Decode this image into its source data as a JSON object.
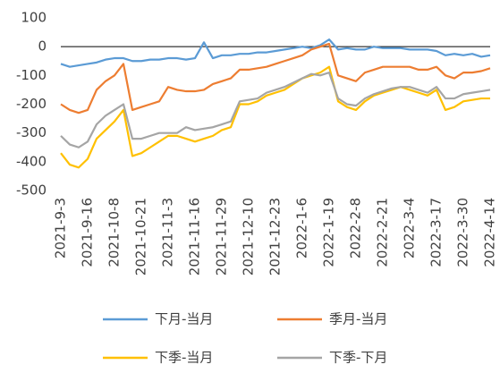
{
  "chart_data": {
    "type": "line",
    "categories": [
      "2021-9-3",
      null,
      null,
      "2021-9-16",
      null,
      null,
      "2021-10-8",
      null,
      null,
      "2021-10-21",
      null,
      null,
      "2021-11-3",
      null,
      null,
      "2021-11-16",
      null,
      null,
      "2021-11-29",
      null,
      null,
      "2021-12-10",
      null,
      null,
      "2021-12-23",
      null,
      null,
      "2022-1-6",
      null,
      null,
      "2022-1-19",
      null,
      null,
      "2022-2-8",
      null,
      null,
      "2022-2-21",
      null,
      null,
      "2022-3-4",
      null,
      null,
      "2022-3-17",
      null,
      null,
      "2022-3-30",
      null,
      null,
      "2022-4-14"
    ],
    "series": [
      {
        "name": "下月-当月",
        "color": "#5b9bd5",
        "values": [
          -60,
          -70,
          -65,
          -60,
          -55,
          -45,
          -40,
          -40,
          -50,
          -50,
          -45,
          -45,
          -40,
          -40,
          -45,
          -40,
          15,
          -40,
          -30,
          -30,
          -25,
          -25,
          -20,
          -20,
          -15,
          -10,
          -5,
          0,
          -5,
          5,
          25,
          -10,
          -5,
          -10,
          -10,
          0,
          -5,
          -5,
          -5,
          -10,
          -10,
          -10,
          -15,
          -30,
          -25,
          -30,
          -25,
          -35,
          -30
        ]
      },
      {
        "name": "季月-当月",
        "color": "#ed7d31",
        "values": [
          -200,
          -220,
          -230,
          -220,
          -150,
          -120,
          -100,
          -60,
          -220,
          -210,
          -200,
          -190,
          -140,
          -150,
          -155,
          -155,
          -150,
          -130,
          -120,
          -110,
          -80,
          -80,
          -75,
          -70,
          -60,
          -50,
          -40,
          -30,
          -10,
          0,
          10,
          -100,
          -110,
          -120,
          -90,
          -80,
          -70,
          -70,
          -70,
          -70,
          -80,
          -80,
          -70,
          -100,
          -110,
          -90,
          -90,
          -85,
          -75
        ]
      },
      {
        "name": "下季-当月",
        "color": "#ffc000",
        "values": [
          -370,
          -410,
          -420,
          -390,
          -320,
          -290,
          -260,
          -220,
          -380,
          -370,
          -350,
          -330,
          -310,
          -310,
          -320,
          -330,
          -320,
          -310,
          -290,
          -280,
          -200,
          -200,
          -190,
          -170,
          -160,
          -150,
          -130,
          -110,
          -100,
          -90,
          -70,
          -190,
          -210,
          -220,
          -190,
          -170,
          -160,
          -150,
          -140,
          -150,
          -160,
          -170,
          -150,
          -220,
          -210,
          -190,
          -185,
          -180,
          -180
        ]
      },
      {
        "name": "下季-下月",
        "color": "#a5a5a5",
        "values": [
          -310,
          -340,
          -350,
          -330,
          -270,
          -240,
          -220,
          -200,
          -320,
          -320,
          -310,
          -300,
          -300,
          -300,
          -280,
          -290,
          -285,
          -280,
          -270,
          -260,
          -190,
          -185,
          -180,
          -160,
          -150,
          -140,
          -125,
          -110,
          -95,
          -100,
          -90,
          -180,
          -200,
          -205,
          -180,
          -165,
          -155,
          -145,
          -140,
          -140,
          -150,
          -160,
          -140,
          -180,
          -180,
          -165,
          -160,
          -155,
          -150
        ]
      }
    ],
    "ylim": [
      -500,
      100
    ],
    "yticks": [
      -500,
      -400,
      -300,
      -200,
      -100,
      0,
      100
    ],
    "grid": false,
    "legend": "bottom"
  }
}
